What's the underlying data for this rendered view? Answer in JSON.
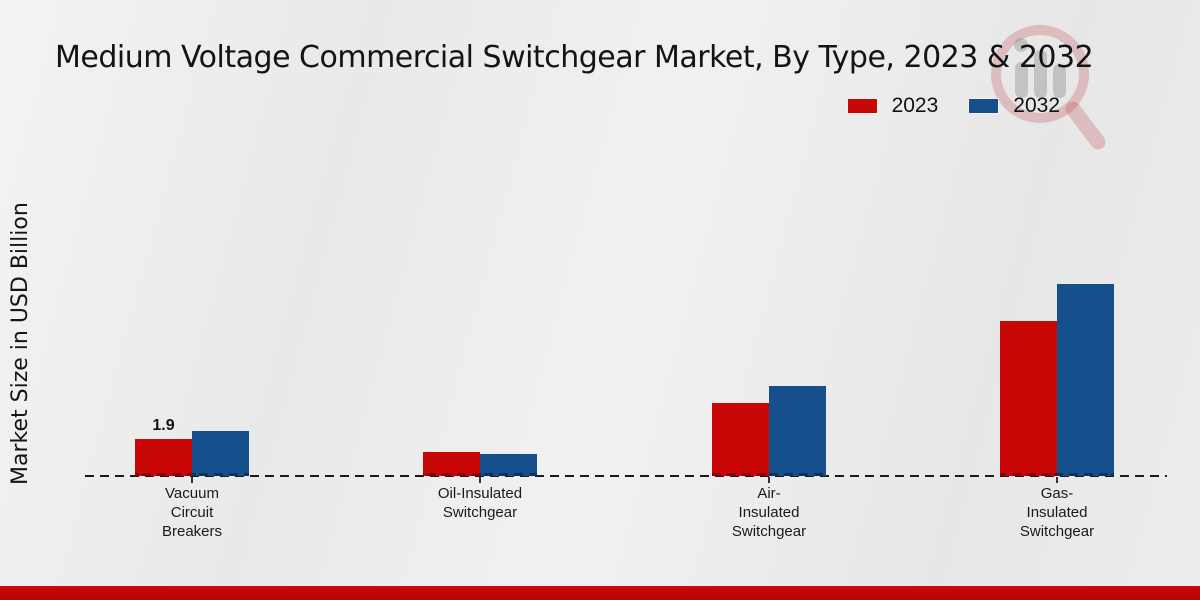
{
  "chart_data": {
    "type": "bar",
    "title": "Medium Voltage Commercial Switchgear Market, By Type, 2023 & 2032",
    "xlabel": "",
    "ylabel": "Market Size in USD Billion",
    "categories": [
      "Vacuum Circuit Breakers",
      "Oil-Insulated Switchgear",
      "Air-Insulated Switchgear",
      "Gas-Insulated Switchgear"
    ],
    "category_label_lines": [
      [
        "Vacuum",
        "Circuit",
        "Breakers"
      ],
      [
        "Oil-Insulated",
        "Switchgear"
      ],
      [
        "Air-",
        "Insulated",
        "Switchgear"
      ],
      [
        "Gas-",
        "Insulated",
        "Switchgear"
      ]
    ],
    "series": [
      {
        "name": "2023",
        "color": "#c90707",
        "values": [
          1.9,
          1.2,
          3.7,
          7.9
        ],
        "visible_value_labels": [
          "1.9",
          "",
          "",
          ""
        ]
      },
      {
        "name": "2032",
        "color": "#15508d",
        "values": [
          2.3,
          1.1,
          4.6,
          9.8
        ],
        "visible_value_labels": [
          "",
          "",
          "",
          ""
        ]
      }
    ],
    "ylim": [
      0,
      10.5
    ],
    "grid": false,
    "axis_style": "dashed-baseline-only",
    "legend_position": "top-right"
  },
  "legend": {
    "items": [
      {
        "label": "2023",
        "color": "#c90707"
      },
      {
        "label": "2032",
        "color": "#15508d"
      }
    ]
  },
  "watermark": {
    "name": "magnifier-bar-chart-logo"
  },
  "footer": {
    "strip_color": "#c10505"
  }
}
